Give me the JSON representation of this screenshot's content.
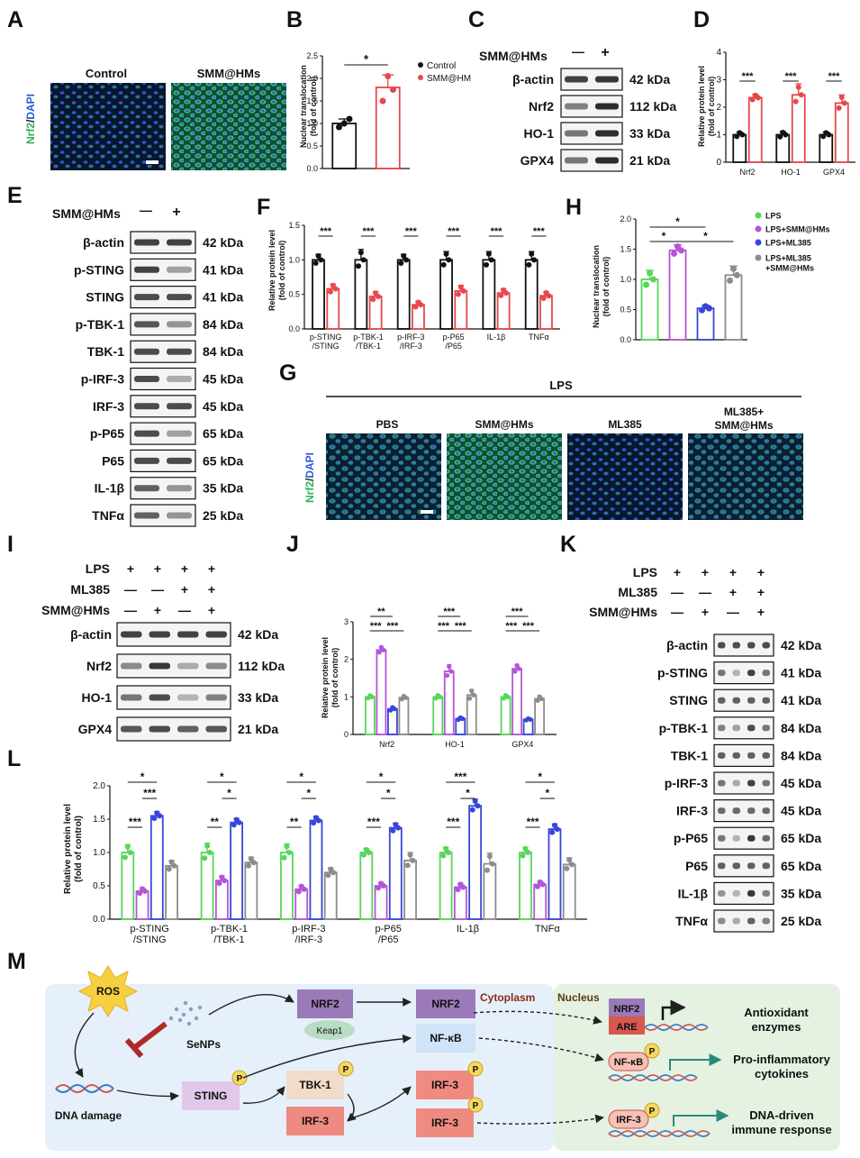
{
  "colors": {
    "control": "#111111",
    "treat": "#e8474b",
    "green": "#55d65a",
    "purple": "#b455d8",
    "blue": "#3746d8",
    "gray": "#8c8c8c",
    "fluor_bg": "#0a1e3a",
    "fluor_green": "#2fae5a",
    "fluor_blue": "#2a5ad8",
    "m_bg": "#e6f0fa",
    "m_nucleus": "#e5f2e2"
  },
  "panel_letters": {
    "A": "A",
    "B": "B",
    "C": "C",
    "D": "D",
    "E": "E",
    "F": "F",
    "G": "G",
    "H": "H",
    "I": "I",
    "J": "J",
    "K": "K",
    "L": "L",
    "M": "M"
  },
  "A": {
    "stain_green": "Nrf2",
    "stain_slash": "/",
    "stain_blue": "DAPI",
    "images": [
      "Control",
      "SMM@HMs"
    ]
  },
  "B": {
    "ylabel_lines": [
      "Nuclear translocation",
      "(fold of control)"
    ],
    "yticks": [
      "0.0",
      "0.5",
      "1.0",
      "1.5",
      "2.0",
      "2.5"
    ],
    "legend": [
      "Control",
      "SMM@HM"
    ],
    "sig": "*"
  },
  "C": {
    "row_header": "SMM@HMs",
    "signs": [
      "—",
      "+"
    ],
    "rows": [
      {
        "name": "β-actin",
        "kda": "42 kDa"
      },
      {
        "name": "Nrf2",
        "kda": "112 kDa"
      },
      {
        "name": "HO-1",
        "kda": "33 kDa"
      },
      {
        "name": "GPX4",
        "kda": "21 kDa"
      }
    ]
  },
  "D": {
    "ylabel_lines": [
      "Relative protein level",
      "(fold of control)"
    ],
    "yticks": [
      "0",
      "1",
      "2",
      "3",
      "4"
    ],
    "sig": [
      "***",
      "***",
      "***"
    ]
  },
  "E": {
    "row_header": "SMM@HMs",
    "signs": [
      "—",
      "+"
    ],
    "rows": [
      {
        "name": "β-actin",
        "kda": "42 kDa"
      },
      {
        "name": "p-STING",
        "kda": "41 kDa"
      },
      {
        "name": "STING",
        "kda": "41 kDa"
      },
      {
        "name": "p-TBK-1",
        "kda": "84 kDa"
      },
      {
        "name": "TBK-1",
        "kda": "84 kDa"
      },
      {
        "name": "p-IRF-3",
        "kda": "45 kDa"
      },
      {
        "name": "IRF-3",
        "kda": "45 kDa"
      },
      {
        "name": "p-P65",
        "kda": "65 kDa"
      },
      {
        "name": "P65",
        "kda": "65 kDa"
      },
      {
        "name": "IL-1β",
        "kda": "35 kDa"
      },
      {
        "name": "TNFα",
        "kda": "25 kDa"
      }
    ]
  },
  "F": {
    "ylabel_lines": [
      "Relative protein level",
      "(fold of control)"
    ],
    "yticks": [
      "0.0",
      "0.5",
      "1.0",
      "1.5"
    ],
    "sig": [
      "***",
      "***",
      "***",
      "***",
      "***",
      "***"
    ]
  },
  "G": {
    "header": "LPS",
    "cols": [
      "PBS",
      "SMM@HMs",
      "ML385",
      "ML385+\nSMM@HMs"
    ],
    "stain_green": "Nrf2",
    "stain_slash": "/",
    "stain_blue": "DAPI"
  },
  "H": {
    "ylabel_lines": [
      "Nuclear translocation",
      "(fold of control)"
    ],
    "yticks": [
      "0.0",
      "0.5",
      "1.0",
      "1.5",
      "2.0"
    ],
    "legend": [
      "LPS",
      "LPS+SMM@HMs",
      "LPS+ML385",
      "LPS+ML385\n+SMM@HMs"
    ],
    "sig": [
      "*",
      "*",
      "*"
    ]
  },
  "I": {
    "conditions": [
      {
        "label": "LPS",
        "signs": [
          "+",
          "+",
          "+",
          "+"
        ]
      },
      {
        "label": "ML385",
        "signs": [
          "—",
          "—",
          "+",
          "+"
        ]
      },
      {
        "label": "SMM@HMs",
        "signs": [
          "—",
          "+",
          "—",
          "+"
        ]
      }
    ],
    "rows": [
      {
        "name": "β-actin",
        "kda": "42 kDa"
      },
      {
        "name": "Nrf2",
        "kda": "112 kDa"
      },
      {
        "name": "HO-1",
        "kda": "33 kDa"
      },
      {
        "name": "GPX4",
        "kda": "21 kDa"
      }
    ]
  },
  "J": {
    "ylabel_lines": [
      "Relative protein level",
      "(fold of control)"
    ],
    "yticks": [
      "0",
      "1",
      "2",
      "3"
    ],
    "sig_groups": [
      [
        "**",
        "***",
        "***"
      ],
      [
        "***",
        "***",
        "***"
      ],
      [
        "***",
        "***",
        "***"
      ]
    ]
  },
  "K": {
    "conditions": [
      {
        "label": "LPS",
        "signs": [
          "+",
          "+",
          "+",
          "+"
        ]
      },
      {
        "label": "ML385",
        "signs": [
          "—",
          "—",
          "+",
          "+"
        ]
      },
      {
        "label": "SMM@HMs",
        "signs": [
          "—",
          "+",
          "—",
          "+"
        ]
      }
    ],
    "rows": [
      {
        "name": "β-actin",
        "kda": "42 kDa"
      },
      {
        "name": "p-STING",
        "kda": "41 kDa"
      },
      {
        "name": "STING",
        "kda": "41 kDa"
      },
      {
        "name": "p-TBK-1",
        "kda": "84 kDa"
      },
      {
        "name": "TBK-1",
        "kda": "84 kDa"
      },
      {
        "name": "p-IRF-3",
        "kda": "45 kDa"
      },
      {
        "name": "IRF-3",
        "kda": "45 kDa"
      },
      {
        "name": "p-P65",
        "kda": "65 kDa"
      },
      {
        "name": "P65",
        "kda": "65 kDa"
      },
      {
        "name": "IL-1β",
        "kda": "35 kDa"
      },
      {
        "name": "TNFα",
        "kda": "25 kDa"
      }
    ]
  },
  "L": {
    "ylabel_lines": [
      "Relative protein level",
      "(fold of control)"
    ],
    "yticks": [
      "0.0",
      "0.5",
      "1.0",
      "1.5",
      "2.0"
    ],
    "sig_groups": [
      [
        "*",
        "***",
        "***"
      ],
      [
        "*",
        "*",
        "**"
      ],
      [
        "*",
        "*",
        "**"
      ],
      [
        "*",
        "*",
        "***"
      ],
      [
        "***",
        "*",
        "***"
      ],
      [
        "*",
        "*",
        "***"
      ]
    ]
  },
  "M": {
    "ros": "ROS",
    "senps": "SeNPs",
    "dna_damage": "DNA damage",
    "nrf2": "NRF2",
    "keap1": "Keap1",
    "nrf2_b": "NRF2",
    "nfkb": "NF-κB",
    "sting": "STING",
    "tbk1": "TBK-1",
    "irf3_a": "IRF-3",
    "irf3_b": "IRF-3",
    "irf3_c": "IRF-3",
    "p": "P",
    "cytoplasm": "Cytoplasm",
    "nucleus": "Nucleus",
    "nrf2_n": "NRF2",
    "are": "ARE",
    "nfkb_n": "NF-κB",
    "irf3_n": "IRF-3",
    "out1": "Antioxidant\nenzymes",
    "out2": "Pro-inflammatory\ncytokines",
    "out3": "DNA-driven\nimmune response"
  },
  "chart_data": [
    {
      "id": "B",
      "type": "bar",
      "title": "",
      "ylabel": "Nuclear translocation (fold of control)",
      "ylim": [
        0,
        2.5
      ],
      "categories": [
        "Control",
        "SMM@HM"
      ],
      "values": [
        1.0,
        1.8
      ],
      "errors": [
        0.1,
        0.28
      ],
      "points": [
        [
          0.92,
          1.0,
          1.1
        ],
        [
          1.5,
          2.05,
          1.75
        ]
      ],
      "series_colors": [
        "#111111",
        "#e8474b"
      ]
    },
    {
      "id": "D",
      "type": "bar",
      "ylabel": "Relative protein level (fold of control)",
      "ylim": [
        0,
        4
      ],
      "categories": [
        "Nrf2",
        "HO-1",
        "GPX4"
      ],
      "series": [
        {
          "name": "Control",
          "values": [
            1.0,
            1.0,
            1.0
          ],
          "errors": [
            0.1,
            0.12,
            0.1
          ]
        },
        {
          "name": "SMM@HMs",
          "values": [
            2.35,
            2.45,
            2.15
          ],
          "errors": [
            0.12,
            0.4,
            0.3
          ]
        }
      ],
      "series_colors": [
        "#111111",
        "#e8474b"
      ]
    },
    {
      "id": "F",
      "type": "bar",
      "ylabel": "Relative protein level (fold of control)",
      "ylim": [
        0,
        1.5
      ],
      "categories": [
        "p-STING\n/STING",
        "p-TBK-1\n/TBK-1",
        "p-IRF-3\n/IRF-3",
        "p-P65\n/P65",
        "IL-1β",
        "TNFα"
      ],
      "series": [
        {
          "name": "Control",
          "values": [
            1.0,
            1.0,
            1.0,
            1.0,
            1.0,
            1.0
          ],
          "errors": [
            0.08,
            0.15,
            0.08,
            0.12,
            0.12,
            0.12
          ]
        },
        {
          "name": "SMM@HMs",
          "values": [
            0.58,
            0.47,
            0.35,
            0.55,
            0.52,
            0.48
          ],
          "errors": [
            0.07,
            0.07,
            0.05,
            0.08,
            0.06,
            0.06
          ]
        }
      ],
      "series_colors": [
        "#111111",
        "#e8474b"
      ]
    },
    {
      "id": "H",
      "type": "bar",
      "ylabel": "Nuclear translocation (fold of control)",
      "ylim": [
        0,
        2.0
      ],
      "categories": [
        "LPS",
        "LPS+SMM@HMs",
        "LPS+ML385",
        "LPS+ML385\n+SMM@HMs"
      ],
      "values": [
        1.0,
        1.48,
        0.52,
        1.07
      ],
      "errors": [
        0.15,
        0.09,
        0.05,
        0.15
      ],
      "series_colors": [
        "#55d65a",
        "#b455d8",
        "#3746d8",
        "#8c8c8c"
      ]
    },
    {
      "id": "J",
      "type": "bar",
      "ylabel": "Relative protein level (fold of control)",
      "ylim": [
        0,
        3
      ],
      "categories": [
        "Nrf2",
        "HO-1",
        "GPX4"
      ],
      "series": [
        {
          "name": "LPS",
          "values": [
            1.0,
            1.0,
            1.0
          ],
          "errors": [
            0.05,
            0.06,
            0.06
          ]
        },
        {
          "name": "LPS+SMM@HMs",
          "values": [
            2.25,
            1.68,
            1.75
          ],
          "errors": [
            0.1,
            0.18,
            0.12
          ]
        },
        {
          "name": "LPS+ML385",
          "values": [
            0.68,
            0.42,
            0.4
          ],
          "errors": [
            0.06,
            0.04,
            0.03
          ]
        },
        {
          "name": "LPS+ML385+SMM@HMs",
          "values": [
            0.98,
            1.05,
            0.95
          ],
          "errors": [
            0.06,
            0.15,
            0.08
          ]
        }
      ],
      "series_colors": [
        "#55d65a",
        "#b455d8",
        "#3746d8",
        "#8c8c8c"
      ]
    },
    {
      "id": "L",
      "type": "bar",
      "ylabel": "Relative protein level (fold of control)",
      "ylim": [
        0,
        2.0
      ],
      "categories": [
        "p-STING\n/STING",
        "p-TBK-1\n/TBK-1",
        "p-IRF-3\n/IRF-3",
        "p-P65\n/P65",
        "IL-1β",
        "TNFα"
      ],
      "series": [
        {
          "name": "LPS",
          "values": [
            1.0,
            1.0,
            1.0,
            1.0,
            1.0,
            1.0
          ],
          "errors": [
            0.12,
            0.14,
            0.13,
            0.06,
            0.08,
            0.08
          ]
        },
        {
          "name": "LPS+SMM@HMs",
          "values": [
            0.42,
            0.58,
            0.45,
            0.5,
            0.48,
            0.52
          ],
          "errors": [
            0.05,
            0.07,
            0.06,
            0.05,
            0.06,
            0.05
          ]
        },
        {
          "name": "LPS+ML385",
          "values": [
            1.55,
            1.45,
            1.48,
            1.37,
            1.7,
            1.35
          ],
          "errors": [
            0.06,
            0.06,
            0.06,
            0.07,
            0.1,
            0.08
          ]
        },
        {
          "name": "LPS+ML385+SMM@HMs",
          "values": [
            0.8,
            0.85,
            0.7,
            0.88,
            0.83,
            0.82
          ],
          "errors": [
            0.08,
            0.08,
            0.07,
            0.12,
            0.16,
            0.1
          ]
        }
      ],
      "series_colors": [
        "#55d65a",
        "#b455d8",
        "#3746d8",
        "#8c8c8c"
      ]
    }
  ]
}
